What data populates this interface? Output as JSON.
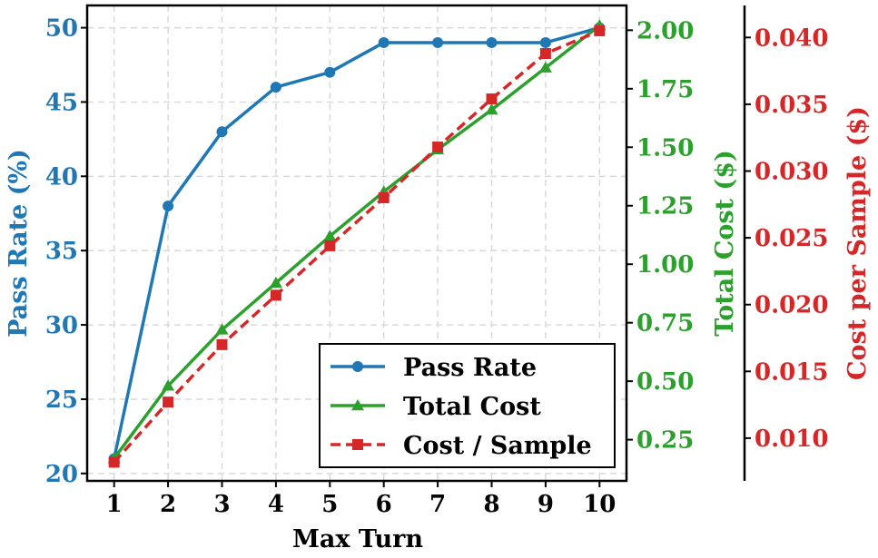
{
  "chart_data": {
    "type": "line",
    "title": "",
    "xlabel": "Max Turn",
    "x": [
      1,
      2,
      3,
      4,
      5,
      6,
      7,
      8,
      9,
      10
    ],
    "xlim": [
      0.5,
      10.5
    ],
    "grid": true,
    "legend_position": "lower-right",
    "axes": {
      "pass_rate": {
        "label": "Pass Rate (%)",
        "color": "#1f77b4",
        "ylim": [
          19.5,
          51.5
        ],
        "ticks": [
          20,
          25,
          30,
          35,
          40,
          45,
          50
        ],
        "tick_labels": [
          "20",
          "25",
          "30",
          "35",
          "40",
          "45",
          "50"
        ]
      },
      "total_cost": {
        "label": "Total Cost ($)",
        "color": "#2ca02c",
        "ylim": [
          0.074,
          2.106
        ],
        "ticks": [
          0.25,
          0.5,
          0.75,
          1.0,
          1.25,
          1.5,
          1.75,
          2.0
        ],
        "tick_labels": [
          "0.25",
          "0.50",
          "0.75",
          "1.00",
          "1.25",
          "1.50",
          "1.75",
          "2.00"
        ]
      },
      "cost_per_sample": {
        "label": "Cost per Sample ($)",
        "color": "#d62728",
        "ylim": [
          0.0068,
          0.0424
        ],
        "ticks": [
          0.01,
          0.015,
          0.02,
          0.025,
          0.03,
          0.035,
          0.04
        ],
        "tick_labels": [
          "0.010",
          "0.015",
          "0.020",
          "0.025",
          "0.030",
          "0.035",
          "0.040"
        ]
      }
    },
    "series": [
      {
        "name": "Pass Rate",
        "axis": "pass_rate",
        "color": "#1f77b4",
        "marker": "circle",
        "line": "solid",
        "values": [
          21,
          38,
          43,
          46,
          47,
          49,
          49,
          49,
          49,
          50
        ]
      },
      {
        "name": "Total Cost",
        "axis": "total_cost",
        "color": "#2ca02c",
        "marker": "triangle",
        "line": "solid",
        "values": [
          0.17,
          0.48,
          0.72,
          0.92,
          1.12,
          1.31,
          1.49,
          1.66,
          1.84,
          2.02
        ]
      },
      {
        "name": "Cost / Sample",
        "axis": "cost_per_sample",
        "color": "#d62728",
        "marker": "square",
        "line": "dashed",
        "values": [
          0.0082,
          0.0127,
          0.017,
          0.0207,
          0.0244,
          0.028,
          0.0318,
          0.0354,
          0.0388,
          0.0405
        ]
      }
    ]
  }
}
